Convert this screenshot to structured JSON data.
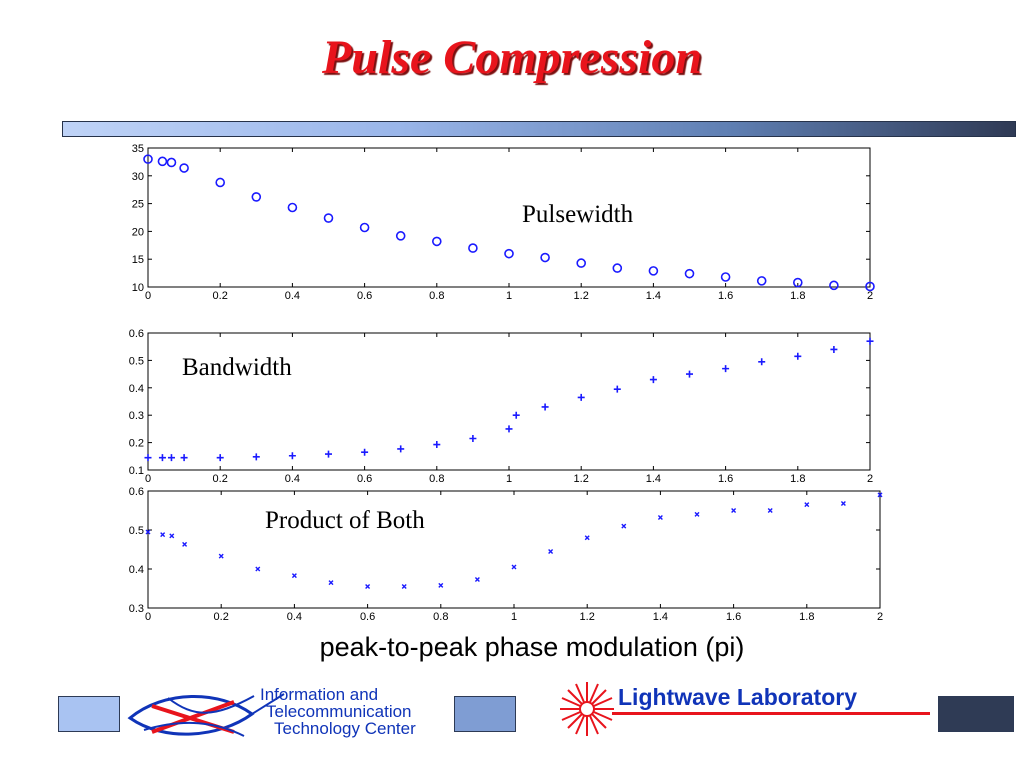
{
  "slide": {
    "title": "Pulse Compression",
    "xlabel": "peak-to-peak phase modulation (pi)"
  },
  "colors": {
    "title": "#e8141c",
    "marker": "#1a1aff",
    "bar_start": "#bfd3f7",
    "bar_end": "#2f3a55"
  },
  "footer": {
    "itc_lines": [
      "Information and",
      "Telecommunication",
      "Technology Center"
    ],
    "lab_name": "Lightwave Laboratory"
  },
  "chart_data": [
    {
      "type": "scatter",
      "marker": "circle",
      "title": "",
      "annotation": "Pulsewidth",
      "xlim": [
        0,
        2
      ],
      "ylim": [
        10,
        35
      ],
      "xticks": [
        "0",
        "0.2",
        "0.4",
        "0.6",
        "0.8",
        "1",
        "1.2",
        "1.4",
        "1.6",
        "1.8",
        "2"
      ],
      "yticks": [
        "10",
        "15",
        "20",
        "25",
        "30",
        "35"
      ],
      "series": [
        {
          "x": [
            0,
            0.04,
            0.065,
            0.1,
            0.2,
            0.3,
            0.4,
            0.5,
            0.6,
            0.7,
            0.8,
            0.9,
            1.0,
            1.1,
            1.2,
            1.3,
            1.4,
            1.5,
            1.6,
            1.7,
            1.8,
            1.9,
            2.0
          ],
          "y": [
            33,
            32.6,
            32.4,
            31.4,
            28.8,
            26.2,
            24.3,
            22.4,
            20.7,
            19.2,
            18.2,
            17.0,
            16.0,
            15.3,
            14.3,
            13.4,
            12.9,
            12.4,
            11.8,
            11.1,
            10.8,
            10.3,
            10.1
          ]
        }
      ]
    },
    {
      "type": "scatter",
      "marker": "plus",
      "title": "",
      "annotation": "Bandwidth",
      "xlim": [
        0,
        2
      ],
      "ylim": [
        0.1,
        0.6
      ],
      "xticks": [
        "0",
        "0.2",
        "0.4",
        "0.6",
        "0.8",
        "1",
        "1.2",
        "1.4",
        "1.6",
        "1.8",
        "2"
      ],
      "yticks": [
        "0.1",
        "0.2",
        "0.3",
        "0.4",
        "0.5",
        "0.6"
      ],
      "series": [
        {
          "x": [
            0,
            0.04,
            0.065,
            0.1,
            0.2,
            0.3,
            0.4,
            0.5,
            0.6,
            0.7,
            0.8,
            0.9,
            1.0,
            1.02,
            1.1,
            1.2,
            1.3,
            1.4,
            1.5,
            1.6,
            1.7,
            1.8,
            1.9,
            2.0
          ],
          "y": [
            0.145,
            0.145,
            0.145,
            0.145,
            0.145,
            0.148,
            0.152,
            0.158,
            0.165,
            0.177,
            0.193,
            0.215,
            0.25,
            0.3,
            0.33,
            0.365,
            0.395,
            0.43,
            0.45,
            0.47,
            0.495,
            0.515,
            0.54,
            0.57
          ]
        }
      ]
    },
    {
      "type": "scatter",
      "marker": "x",
      "title": "",
      "annotation": "Product of Both",
      "xlim": [
        0,
        2
      ],
      "ylim": [
        0.3,
        0.6
      ],
      "xticks": [
        "0",
        "0.2",
        "0.4",
        "0.6",
        "0.8",
        "1",
        "1.2",
        "1.4",
        "1.6",
        "1.8",
        "2"
      ],
      "yticks": [
        "0.3",
        "0.4",
        "0.5",
        "0.6"
      ],
      "series": [
        {
          "x": [
            0,
            0.04,
            0.065,
            0.1,
            0.2,
            0.3,
            0.4,
            0.5,
            0.6,
            0.7,
            0.8,
            0.9,
            1.0,
            1.1,
            1.2,
            1.3,
            1.4,
            1.5,
            1.6,
            1.7,
            1.8,
            1.9,
            2.0
          ],
          "y": [
            0.495,
            0.488,
            0.485,
            0.463,
            0.433,
            0.4,
            0.383,
            0.365,
            0.355,
            0.355,
            0.358,
            0.373,
            0.405,
            0.445,
            0.48,
            0.51,
            0.532,
            0.54,
            0.55,
            0.55,
            0.565,
            0.568,
            0.59
          ]
        }
      ]
    }
  ]
}
